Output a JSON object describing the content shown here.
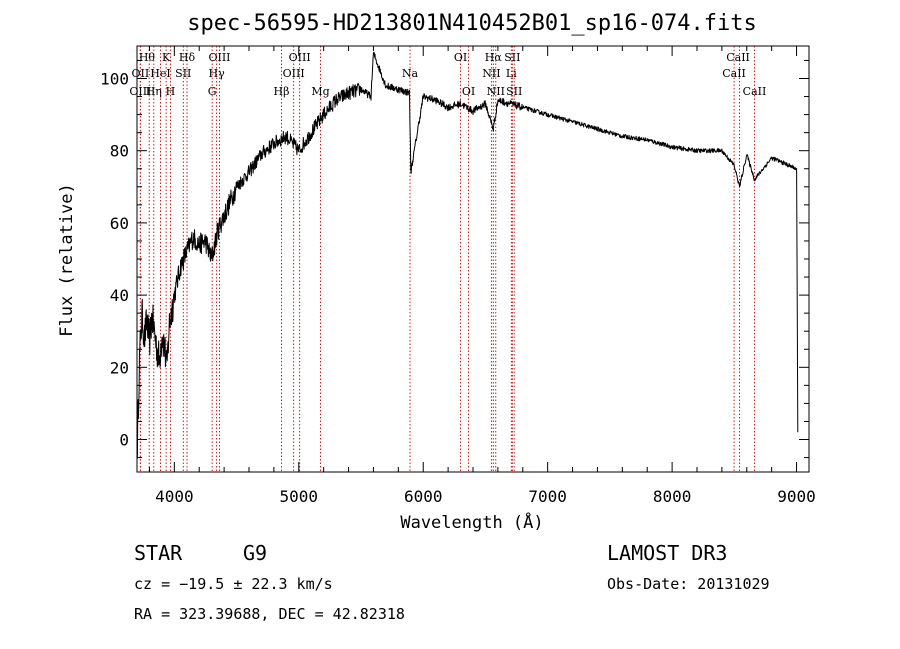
{
  "chart_data": {
    "type": "line",
    "title": "spec-56595-HD213801N410452B01_sp16-074.fits",
    "xlabel": "Wavelength (Å)",
    "ylabel": "Flux (relative)",
    "xlim": [
      3700,
      9100
    ],
    "ylim": [
      -9,
      109
    ],
    "xticks": [
      4000,
      5000,
      6000,
      7000,
      8000,
      9000
    ],
    "xtick_labels": [
      "4000",
      "5000",
      "6000",
      "7000",
      "8000",
      "9000"
    ],
    "yticks": [
      0,
      20,
      40,
      60,
      80,
      100
    ],
    "ytick_labels": [
      "0",
      "20",
      "40",
      "60",
      "80",
      "100"
    ],
    "series": [
      {
        "name": "spectrum",
        "x": [
          3700,
          3720,
          3740,
          3760,
          3780,
          3800,
          3820,
          3840,
          3860,
          3880,
          3900,
          3920,
          3940,
          3960,
          3980,
          4000,
          4050,
          4100,
          4150,
          4200,
          4250,
          4300,
          4350,
          4400,
          4500,
          4600,
          4700,
          4800,
          4900,
          5000,
          5100,
          5200,
          5300,
          5400,
          5500,
          5580,
          5600,
          5700,
          5800,
          5890,
          5900,
          6000,
          6100,
          6200,
          6300,
          6400,
          6500,
          6563,
          6600,
          6700,
          6800,
          7000,
          7200,
          7400,
          7600,
          7800,
          8000,
          8200,
          8400,
          8498,
          8542,
          8600,
          8662,
          8800,
          9000,
          9010
        ],
        "y": [
          -5,
          22,
          35,
          28,
          33,
          27,
          34,
          30,
          25,
          22,
          29,
          26,
          20,
          32,
          36,
          40,
          48,
          52,
          56,
          54,
          55,
          50,
          58,
          62,
          70,
          74,
          79,
          82,
          84,
          80,
          85,
          90,
          94,
          96,
          97,
          95,
          107,
          98,
          97,
          96,
          74,
          95,
          94,
          92,
          93,
          91,
          93,
          86,
          94,
          93,
          92,
          90,
          88,
          86,
          84,
          83,
          81,
          80,
          80,
          76,
          70,
          79,
          72,
          78,
          75,
          2
        ]
      }
    ],
    "spectral_lines": [
      {
        "name": "Hθ",
        "wavelength": 3798
      },
      {
        "name": "OII",
        "wavelength": 3727
      },
      {
        "name": "OIII",
        "wavelength": 3727
      },
      {
        "name": "HeI",
        "wavelength": 3889
      },
      {
        "name": "Hη",
        "wavelength": 3835
      },
      {
        "name": "K",
        "wavelength": 3934
      },
      {
        "name": "H",
        "wavelength": 3969
      },
      {
        "name": "SII",
        "wavelength": 4072
      },
      {
        "name": "Hδ",
        "wavelength": 4102
      },
      {
        "name": "G",
        "wavelength": 4304
      },
      {
        "name": "Hγ",
        "wavelength": 4340
      },
      {
        "name": "OIII",
        "wavelength": 4363
      },
      {
        "name": "Hβ",
        "wavelength": 4861
      },
      {
        "name": "OIII",
        "wavelength": 4959
      },
      {
        "name": "OIII",
        "wavelength": 5007
      },
      {
        "name": "Mg",
        "wavelength": 5175
      },
      {
        "name": "Na",
        "wavelength": 5894
      },
      {
        "name": "OI",
        "wavelength": 6300
      },
      {
        "name": "OI",
        "wavelength": 6364
      },
      {
        "name": "NII",
        "wavelength": 6548
      },
      {
        "name": "Hα",
        "wavelength": 6563
      },
      {
        "name": "NII",
        "wavelength": 6583
      },
      {
        "name": "Li",
        "wavelength": 6708
      },
      {
        "name": "SII",
        "wavelength": 6716
      },
      {
        "name": "SII",
        "wavelength": 6731
      },
      {
        "name": "CaII",
        "wavelength": 8498
      },
      {
        "name": "CaII",
        "wavelength": 8542
      },
      {
        "name": "CaII",
        "wavelength": 8662
      }
    ]
  },
  "line_labels": [
    {
      "text": "Hθ",
      "wavelength": 3780,
      "row": 0
    },
    {
      "text": "K",
      "wavelength": 3934,
      "row": 0
    },
    {
      "text": "Hδ",
      "wavelength": 4102,
      "row": 0
    },
    {
      "text": "OIII",
      "wavelength": 4363,
      "row": 0
    },
    {
      "text": "OIII",
      "wavelength": 5007,
      "row": 0
    },
    {
      "text": "OI",
      "wavelength": 6300,
      "row": 0
    },
    {
      "text": "Hα",
      "wavelength": 6563,
      "row": 0
    },
    {
      "text": "SII",
      "wavelength": 6716,
      "row": 0
    },
    {
      "text": "CaII",
      "wavelength": 8530,
      "row": 0
    },
    {
      "text": "OII",
      "wavelength": 3727,
      "row": 1
    },
    {
      "text": "HeI",
      "wavelength": 3889,
      "row": 1
    },
    {
      "text": "SII",
      "wavelength": 4072,
      "row": 1
    },
    {
      "text": "Hγ",
      "wavelength": 4340,
      "row": 1
    },
    {
      "text": "OIII",
      "wavelength": 4959,
      "row": 1
    },
    {
      "text": "Na",
      "wavelength": 5894,
      "row": 1
    },
    {
      "text": "NII",
      "wavelength": 6548,
      "row": 1
    },
    {
      "text": "Li",
      "wavelength": 6708,
      "row": 1
    },
    {
      "text": "CaII",
      "wavelength": 8498,
      "row": 1
    },
    {
      "text": "OIII",
      "wavelength": 3727,
      "row": 2
    },
    {
      "text": "Hη",
      "wavelength": 3835,
      "row": 2
    },
    {
      "text": "H",
      "wavelength": 3969,
      "row": 2
    },
    {
      "text": "G",
      "wavelength": 4304,
      "row": 2
    },
    {
      "text": "Hβ",
      "wavelength": 4861,
      "row": 2
    },
    {
      "text": "Mg",
      "wavelength": 5175,
      "row": 2
    },
    {
      "text": "OI",
      "wavelength": 6364,
      "row": 2
    },
    {
      "text": "NII",
      "wavelength": 6583,
      "row": 2
    },
    {
      "text": "SII",
      "wavelength": 6731,
      "row": 2
    },
    {
      "text": "CaII",
      "wavelength": 8662,
      "row": 2
    }
  ],
  "info": {
    "object_class": "STAR",
    "subclass": "G9",
    "survey": "LAMOST DR3",
    "redshift": "cz = −19.5 ± 22.3 km/s",
    "obs_date": "Obs-Date: 20131029",
    "coords": "RA = 323.39688, DEC =  42.82318"
  },
  "colors": {
    "spectrum": "#000000",
    "line_marker": "#cc0000",
    "axes": "#000000"
  }
}
